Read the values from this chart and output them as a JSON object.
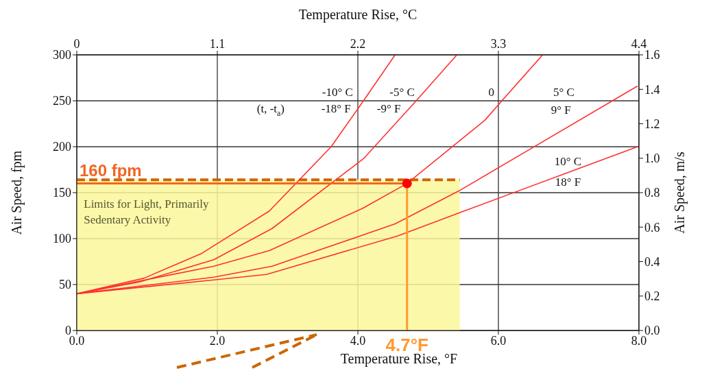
{
  "chart_data": {
    "type": "line",
    "xlabel": "Temperature Rise, °F",
    "ylabel": "Air Speed, fpm",
    "x2label": "Temperature Rise, °C",
    "y2label": "Air Speed, m/s",
    "xlim": [
      0,
      8
    ],
    "xticks": [
      {
        "value": 0,
        "label": "0.0"
      },
      {
        "value": 2,
        "label": "2.0"
      },
      {
        "value": 4,
        "label": "4.0"
      },
      {
        "value": 6,
        "label": "6.0"
      },
      {
        "value": 8,
        "label": "8.0"
      }
    ],
    "ylim": [
      0,
      300
    ],
    "yticks": [
      0,
      50,
      100,
      150,
      200,
      250,
      300
    ],
    "x2lim": [
      0,
      4.4
    ],
    "x2ticks": [
      0,
      1.1,
      2.2,
      3.3,
      4.4
    ],
    "y2lim": [
      0,
      1.6
    ],
    "y2ticks": [
      {
        "value": 0,
        "label": "0.0"
      },
      {
        "value": 0.2,
        "label": "0.2"
      },
      {
        "value": 0.4,
        "label": "0.4"
      },
      {
        "value": 0.6,
        "label": "0.6"
      },
      {
        "value": 0.8,
        "label": "0.8"
      },
      {
        "value": 1.0,
        "label": "1.0"
      },
      {
        "value": 1.2,
        "label": "1.2"
      },
      {
        "value": 1.4,
        "label": "1.4"
      },
      {
        "value": 1.6,
        "label": "1.6"
      }
    ],
    "grid": true,
    "marker": "none",
    "line_style": "solid",
    "series": [
      {
        "type": "area",
        "color": "#cc6600",
        "line_style": "dashed",
        "x": [
          0,
          5.45
        ],
        "values": [
          164,
          164
        ]
      },
      {
        "color": "#ff3030",
        "x": [
          0,
          0.96,
          1.78,
          2.74,
          3.62,
          4.08,
          4.53
        ],
        "values": [
          40,
          57,
          84,
          130,
          200,
          250,
          300
        ]
      },
      {
        "color": "#ff3030",
        "x": [
          0,
          0.9,
          1.95,
          2.78,
          4.08,
          4.83,
          5.41
        ],
        "values": [
          40,
          53,
          77,
          111,
          187,
          250,
          300
        ]
      },
      {
        "color": "#ff3030",
        "x": [
          0,
          1.95,
          2.74,
          4.07,
          4.7,
          5.81,
          6.06,
          6.63
        ],
        "values": [
          40,
          70,
          87,
          133,
          160,
          229,
          251,
          300
        ]
      },
      {
        "color": "#ff3030",
        "x": [
          0,
          1.95,
          2.78,
          4.53,
          5.44,
          7.98
        ],
        "values": [
          40,
          58,
          70,
          116,
          152,
          266
        ]
      },
      {
        "color": "#ff3030",
        "x": [
          0,
          1.95,
          2.7,
          4.57,
          5.44,
          7.98
        ],
        "values": [
          40,
          55,
          61,
          103,
          128,
          200
        ]
      },
      {
        "type": "scatter",
        "color": "#ff0000",
        "marker": "circle",
        "x": [
          4.7
        ],
        "values": [
          160
        ]
      }
    ],
    "ref_lines": [
      {
        "axis": "y",
        "value": 160,
        "label": "160 fpm",
        "color": "#f26522"
      },
      {
        "axis": "x",
        "value": 4.7,
        "label": "4.7°F",
        "color": "#ff9933"
      }
    ],
    "annotations": [
      "-10° C",
      "-18° F",
      "(t, -t$_{a}$)",
      "-5° C",
      "-9° F",
      "0",
      "5° C",
      "9° F",
      "10° C",
      "18° F",
      "Limits for Light, Primarily",
      "Sedentary Activity"
    ]
  }
}
